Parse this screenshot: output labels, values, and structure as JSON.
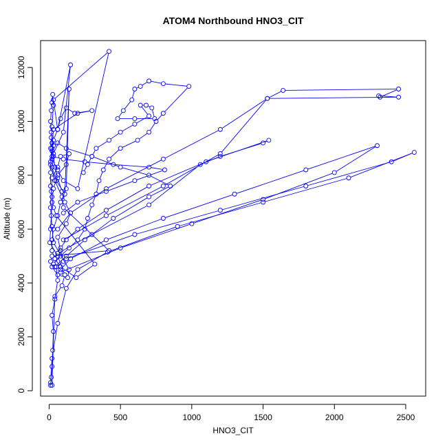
{
  "chart_data": {
    "type": "line",
    "title": "ATOM4 Northbound HNO3_CIT",
    "xlabel": "HNO3_CIT",
    "ylabel": "Altitude (m)",
    "xlim": [
      -60,
      2640
    ],
    "ylim": [
      -200,
      13000
    ],
    "xticks": [
      0,
      500,
      1000,
      1500,
      2000,
      2500
    ],
    "yticks": [
      0,
      2000,
      4000,
      6000,
      8000,
      10000,
      12000
    ],
    "grid": false,
    "legend": "none",
    "series_color": "#0000ff",
    "series": [
      {
        "x": [
          10,
          15,
          20,
          25,
          30,
          20,
          40,
          60,
          50,
          100,
          80,
          60,
          120,
          150,
          110,
          90,
          60,
          40,
          30,
          20,
          15,
          10,
          15,
          20,
          25,
          30,
          20,
          15,
          10,
          20,
          60,
          100,
          200,
          420,
          30,
          60,
          150,
          100,
          30,
          20,
          50,
          110,
          140,
          120,
          80,
          60,
          30,
          20,
          20,
          40,
          80,
          190,
          320,
          50,
          30,
          20,
          10,
          10,
          10,
          20,
          30,
          60,
          80,
          120,
          180,
          300,
          200,
          30,
          20,
          10,
          40,
          90,
          100,
          420,
          20,
          10,
          20,
          60,
          130,
          140,
          30,
          20,
          10,
          15,
          20,
          60,
          80,
          140,
          120,
          60,
          30,
          20,
          15,
          10,
          5,
          60,
          110,
          90,
          40,
          20
        ],
        "y": [
          200,
          500,
          900,
          1500,
          2200,
          2800,
          3400,
          4100,
          4600,
          4800,
          5200,
          5700,
          6200,
          6600,
          7000,
          7400,
          7900,
          8300,
          8700,
          9200,
          9600,
          10000,
          10400,
          10700,
          11000,
          10600,
          9800,
          9400,
          9000,
          8600,
          8200,
          7800,
          7500,
          12600,
          10800,
          9700,
          12100,
          9600,
          8800,
          8300,
          7800,
          7300,
          11200,
          7500,
          7000,
          6500,
          6000,
          5600,
          5200,
          4900,
          4600,
          4200,
          4700,
          6500,
          6800,
          7200,
          7600,
          8100,
          8500,
          8900,
          9300,
          9700,
          10100,
          10500,
          10300,
          10400,
          10300,
          9700,
          9000,
          8400,
          7800,
          7200,
          6800,
          5200,
          5000,
          4800,
          4600,
          4300,
          4200,
          4500,
          5500,
          6100,
          6800,
          7400,
          7900,
          8300,
          8700,
          8800,
          8400,
          8000,
          7500,
          7000,
          6500,
          6000,
          5500,
          5000,
          4300,
          3900,
          3500,
          200
        ]
      },
      {
        "x": [
          30,
          80,
          140,
          200,
          250,
          270,
          300,
          330,
          350,
          380,
          420,
          500,
          620,
          700,
          750,
          800,
          980,
          800,
          700,
          640,
          600,
          580,
          520,
          480,
          600,
          740,
          720,
          680,
          640,
          700,
          600,
          500,
          420,
          330,
          300,
          270,
          240
        ],
        "y": [
          4700,
          5000,
          5300,
          5600,
          6000,
          6400,
          6900,
          7300,
          7800,
          8200,
          8600,
          9000,
          9300,
          9600,
          10000,
          10300,
          11300,
          11400,
          11500,
          11300,
          11200,
          10800,
          10400,
          10100,
          10100,
          10100,
          10500,
          10600,
          10600,
          10200,
          9900,
          9600,
          9300,
          9000,
          8700,
          8400,
          8100
        ]
      },
      {
        "x": [
          40,
          120,
          250,
          450,
          700,
          850,
          700,
          500,
          300,
          120,
          60,
          30,
          20,
          100,
          250,
          450,
          700,
          810,
          600,
          400,
          200,
          100
        ],
        "y": [
          4600,
          5000,
          5600,
          6400,
          7200,
          7600,
          8000,
          8300,
          8700,
          9000,
          9200,
          9100,
          8700,
          8600,
          8500,
          8400,
          8300,
          8200,
          7800,
          7400,
          7000,
          6600
        ]
      },
      {
        "x": [
          60,
          300,
          700,
          1060,
          1200,
          1500,
          1540,
          1100,
          700,
          400,
          200,
          120,
          80,
          60,
          40
        ],
        "y": [
          5100,
          5800,
          6900,
          8400,
          8700,
          9200,
          9300,
          8500,
          7600,
          6700,
          6000,
          5600,
          5300,
          5100,
          4900
        ]
      },
      {
        "x": [
          100,
          400,
          800,
          1200,
          1530,
          1640,
          2450,
          2320,
          2310,
          2450,
          1530,
          1200,
          800,
          400,
          150,
          60
        ],
        "y": [
          5600,
          6500,
          7600,
          8800,
          10850,
          11150,
          11200,
          10900,
          10950,
          10900,
          10850,
          9700,
          8600,
          7500,
          6600,
          6000
        ]
      },
      {
        "x": [
          80,
          500,
          1000,
          1500,
          2000,
          2300,
          1800,
          1300,
          800,
          400,
          150,
          80
        ],
        "y": [
          4400,
          5300,
          6200,
          7100,
          8100,
          9100,
          8200,
          7300,
          6400,
          5600,
          4900,
          4500
        ]
      },
      {
        "x": [
          120,
          600,
          1200,
          1800,
          2400,
          2560,
          2100,
          1500,
          900,
          410,
          200,
          120,
          60,
          20,
          10
        ],
        "y": [
          4900,
          5800,
          6700,
          7600,
          8500,
          8850,
          7900,
          7000,
          6100,
          5150,
          4500,
          3800,
          2500,
          1200,
          300
        ]
      }
    ]
  }
}
